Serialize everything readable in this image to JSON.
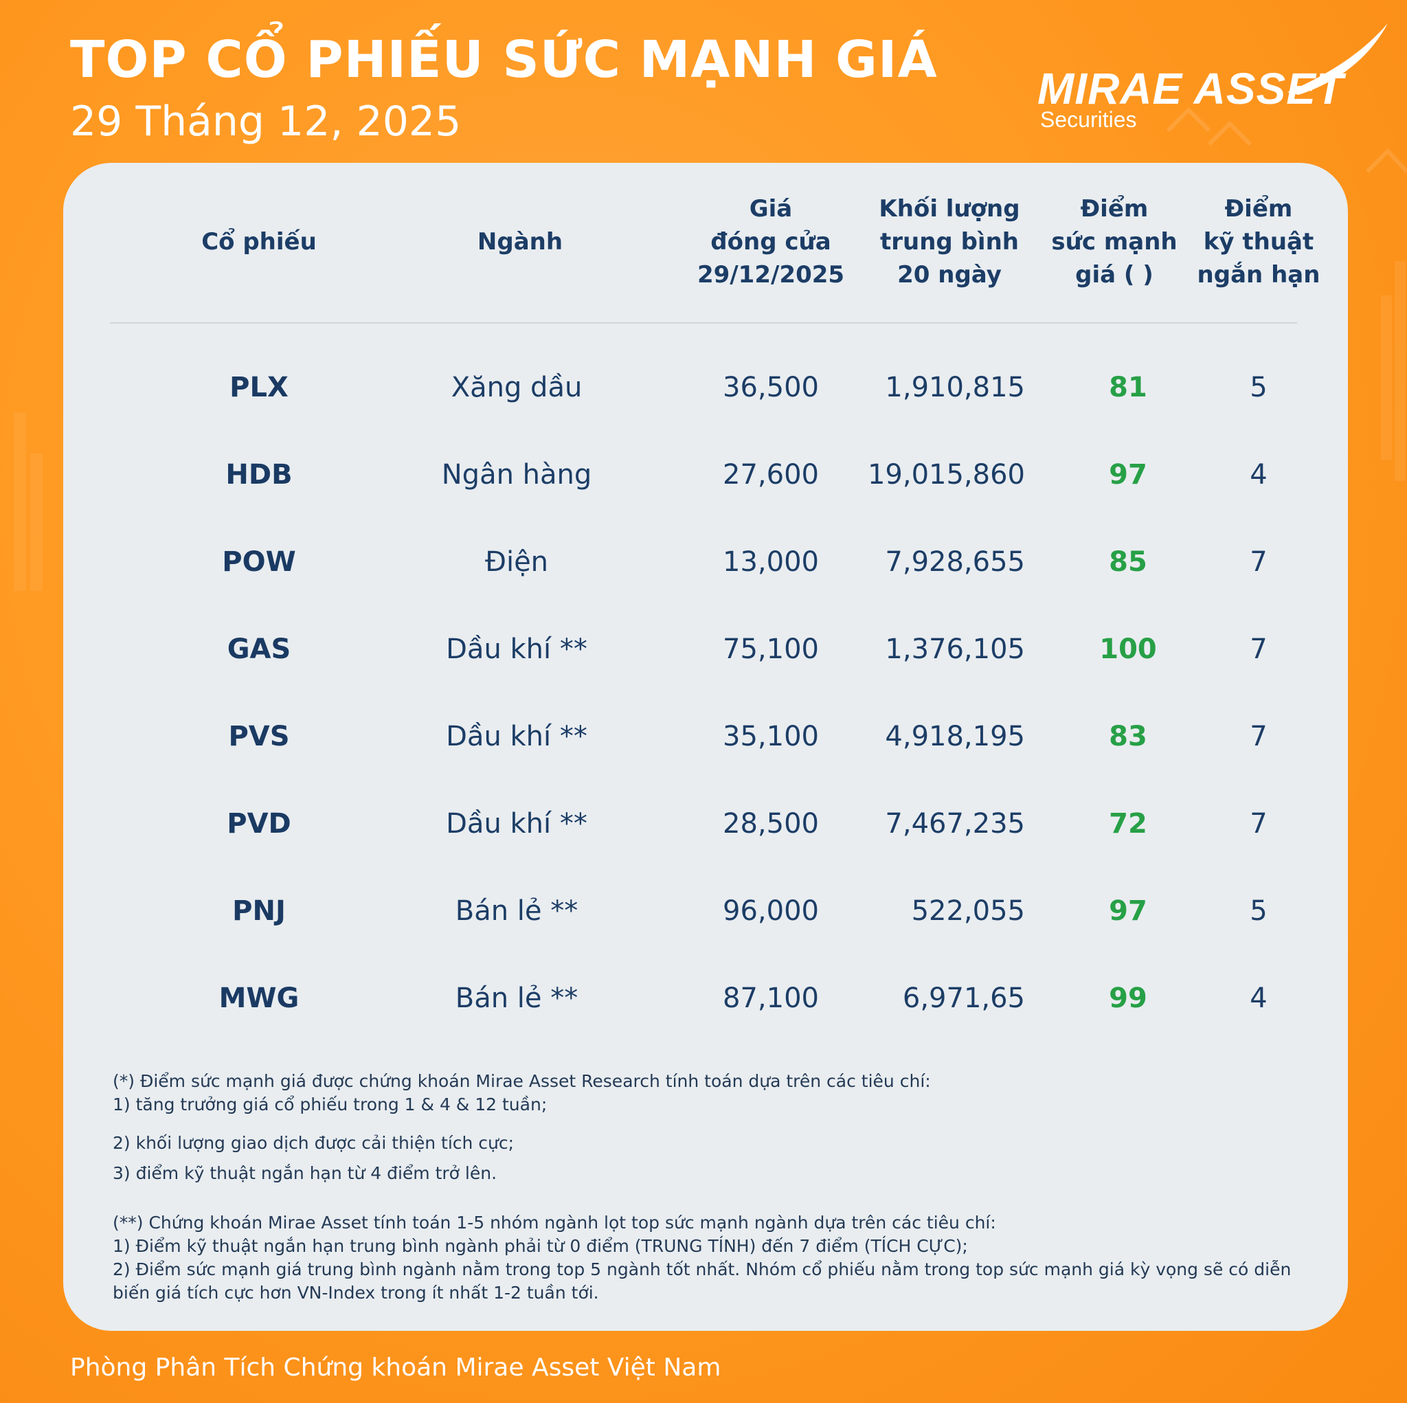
{
  "header": {
    "title": "TOP CỔ PHIẾU SỨC MẠNH GIÁ",
    "date": "29 Tháng 12, 2025"
  },
  "logo": {
    "name": "MIRAE ASSET",
    "sub": "Securities"
  },
  "table": {
    "columns": [
      {
        "lines": [
          "Cổ phiếu"
        ]
      },
      {
        "lines": [
          "Ngành"
        ]
      },
      {
        "lines": [
          "Giá",
          "đóng cửa",
          "29/12/2025"
        ]
      },
      {
        "lines": [
          "Khối lượng",
          "trung bình",
          "20 ngày"
        ]
      },
      {
        "lines": [
          "Điểm",
          "sức mạnh",
          "giá ( )"
        ]
      },
      {
        "lines": [
          "Điểm",
          "kỹ thuật",
          "ngắn hạn"
        ]
      }
    ],
    "rows": [
      {
        "ticker": "PLX",
        "sector": "Xăng dầu",
        "price": "36,500",
        "volume": "1,910,815",
        "score": "81",
        "tech": "5"
      },
      {
        "ticker": "HDB",
        "sector": "Ngân hàng",
        "price": "27,600",
        "volume": "19,015,860",
        "score": "97",
        "tech": "4"
      },
      {
        "ticker": "POW",
        "sector": "Điện",
        "price": "13,000",
        "volume": "7,928,655",
        "score": "85",
        "tech": "7"
      },
      {
        "ticker": "GAS",
        "sector": "Dầu khí **",
        "price": "75,100",
        "volume": "1,376,105",
        "score": "100",
        "tech": "7"
      },
      {
        "ticker": "PVS",
        "sector": "Dầu khí **",
        "price": "35,100",
        "volume": "4,918,195",
        "score": "83",
        "tech": "7"
      },
      {
        "ticker": "PVD",
        "sector": "Dầu khí **",
        "price": "28,500",
        "volume": "7,467,235",
        "score": "72",
        "tech": "7"
      },
      {
        "ticker": "PNJ",
        "sector": "Bán lẻ **",
        "price": "96,000",
        "volume": "522,055",
        "score": "97",
        "tech": "5"
      },
      {
        "ticker": "MWG",
        "sector": "Bán lẻ **",
        "price": "87,100",
        "volume": "6,971,65",
        "score": "99",
        "tech": "4"
      }
    ]
  },
  "notes": {
    "n1_intro": "(*) Điểm sức mạnh giá được chứng khoán Mirae Asset Research tính toán dựa trên các tiêu chí:",
    "n1_c1": "1) tăng trưởng giá cổ phiếu trong 1 & 4 & 12 tuần;",
    "n1_c2": "2) khối lượng giao dịch được cải thiện tích cực;",
    "n1_c3": "3) điểm kỹ thuật ngắn hạn từ 4 điểm trở lên.",
    "n2_intro": "(**) Chứng khoán Mirae Asset tính toán 1-5 nhóm ngành lọt top sức mạnh ngành dựa trên các tiêu chí:",
    "n2_c1": "1) Điểm kỹ thuật ngắn hạn trung bình ngành phải từ 0 điểm (TRUNG TÍNH) đến 7 điểm (TÍCH CỰC);",
    "n2_c2": "2) Điểm sức mạnh giá trung bình ngành nằm trong top 5 ngành tốt nhất. Nhóm cổ phiếu nằm trong top sức mạnh giá kỳ vọng sẽ có diễn biến giá tích cực hơn VN-Index trong ít nhất 1-2 tuần tới."
  },
  "footer": {
    "text": "Phòng Phân Tích Chứng khoán Mirae Asset Việt Nam"
  },
  "colors": {
    "background": "#ff9a22",
    "card": "#e9edf0",
    "navy": "#1c3d66",
    "score_green": "#27a046"
  }
}
